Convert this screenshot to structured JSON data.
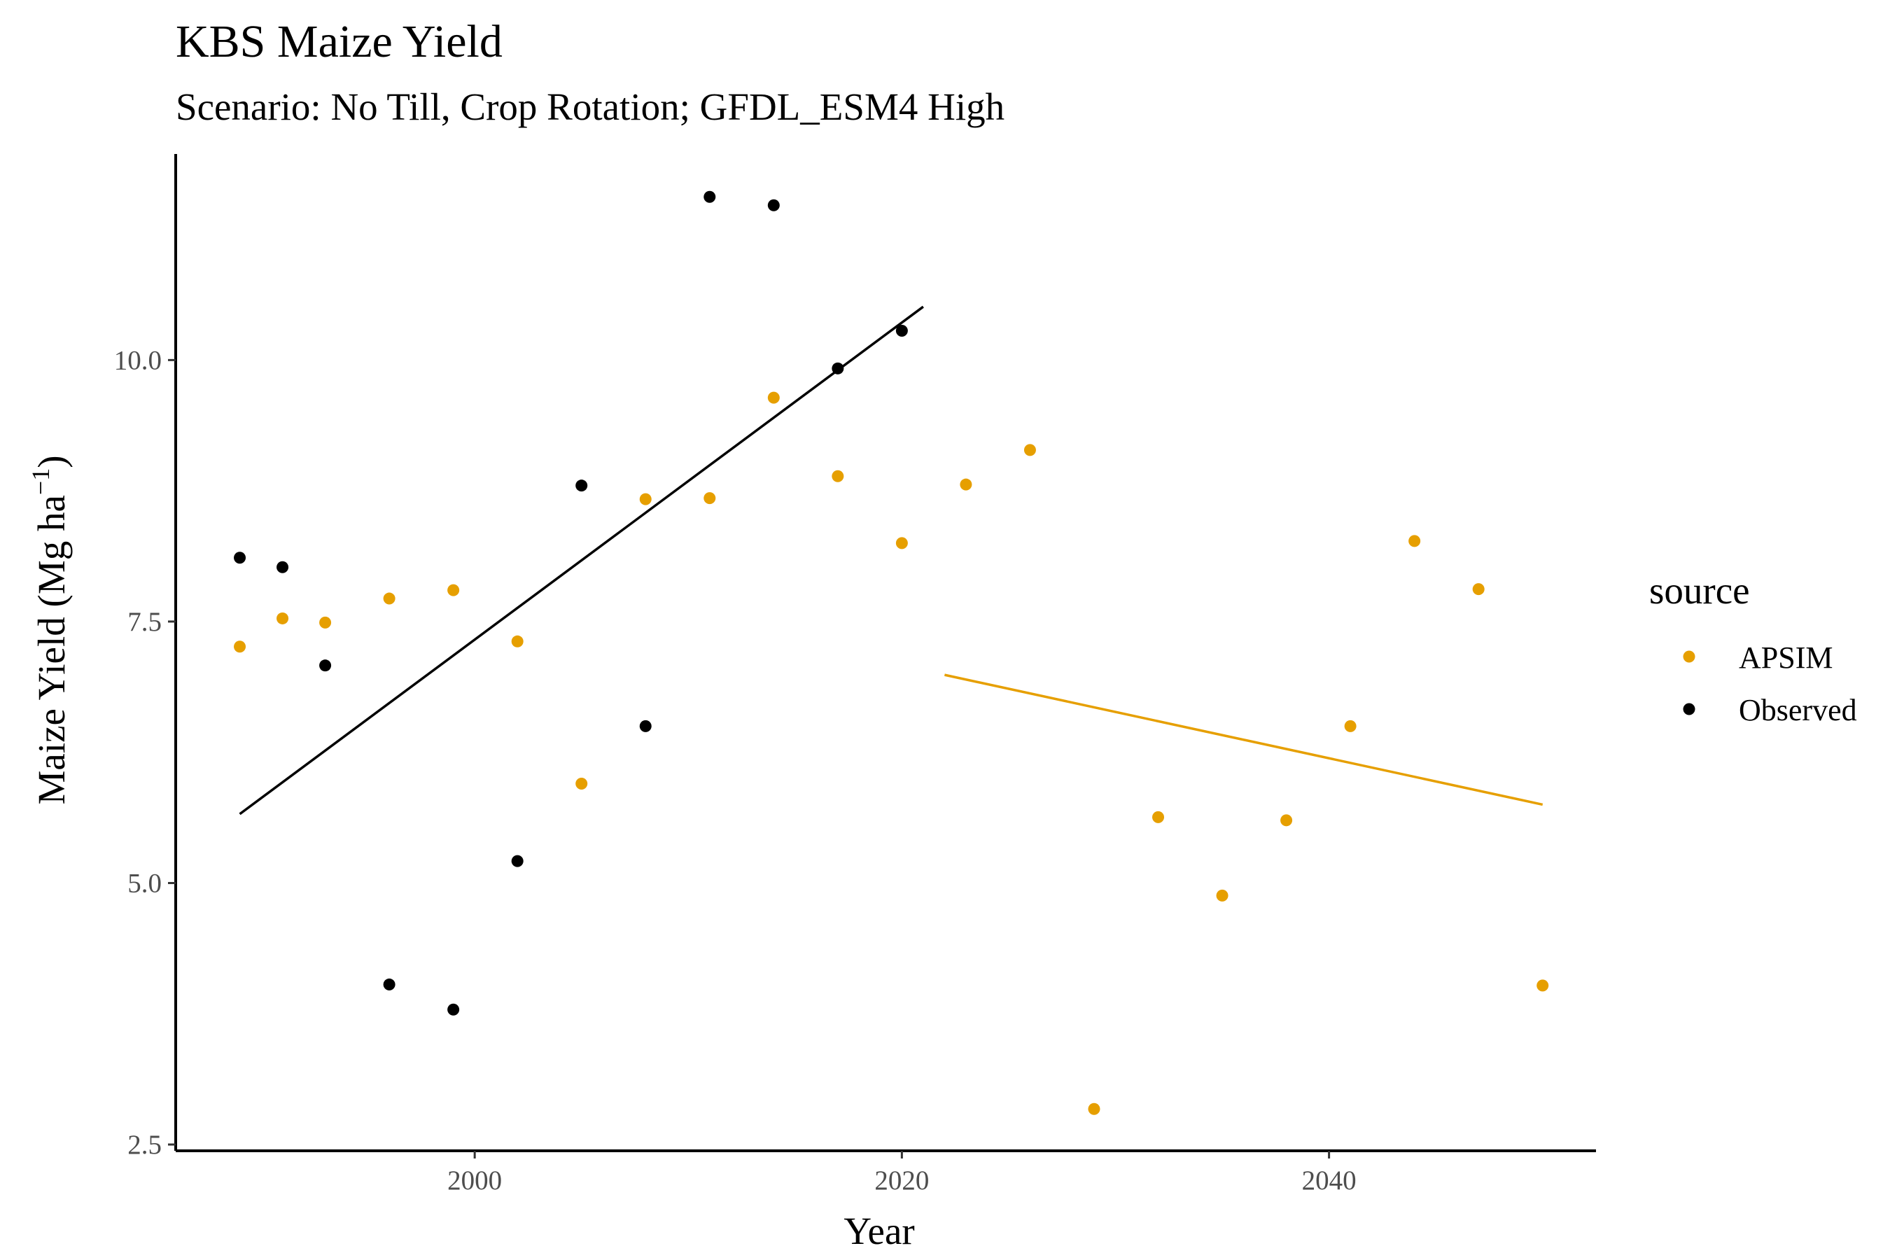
{
  "chart_data": {
    "type": "scatter",
    "title": "KBS Maize Yield",
    "subtitle": "Scenario: No Till, Crop Rotation; GFDL_ESM4 High",
    "xlabel": "Year",
    "ylabel_prefix": "Maize Yield (Mg ha",
    "ylabel_superscript": "−1",
    "ylabel_suffix": ")",
    "xlim": [
      1986,
      2052.5
    ],
    "ylim": [
      2.44,
      11.97
    ],
    "x_ticks": [
      2000,
      2020,
      2040
    ],
    "x_tick_labels": [
      "2000",
      "2020",
      "2040"
    ],
    "y_ticks": [
      2.5,
      5.0,
      7.5,
      10.0
    ],
    "y_tick_labels": [
      "2.5",
      "5.0",
      "7.5",
      "10.0"
    ],
    "grid": false,
    "legend": {
      "title": "source",
      "position": "right",
      "entries": [
        "APSIM",
        "Observed"
      ]
    },
    "series": [
      {
        "name": "APSIM",
        "color": "#E69F00",
        "points": [
          {
            "x": 1989,
            "y": 7.26
          },
          {
            "x": 1991,
            "y": 7.53
          },
          {
            "x": 1993,
            "y": 7.49
          },
          {
            "x": 1996,
            "y": 7.72
          },
          {
            "x": 1999,
            "y": 7.8
          },
          {
            "x": 2002,
            "y": 7.31
          },
          {
            "x": 2005,
            "y": 5.95
          },
          {
            "x": 2008,
            "y": 8.67
          },
          {
            "x": 2011,
            "y": 8.68
          },
          {
            "x": 2014,
            "y": 9.64
          },
          {
            "x": 2017,
            "y": 8.89
          },
          {
            "x": 2020,
            "y": 8.25
          },
          {
            "x": 2023,
            "y": 8.81
          },
          {
            "x": 2026,
            "y": 9.14
          },
          {
            "x": 2029,
            "y": 2.84
          },
          {
            "x": 2032,
            "y": 5.63
          },
          {
            "x": 2035,
            "y": 4.88
          },
          {
            "x": 2038,
            "y": 5.6
          },
          {
            "x": 2041,
            "y": 6.5
          },
          {
            "x": 2044,
            "y": 8.27
          },
          {
            "x": 2047,
            "y": 7.81
          },
          {
            "x": 2050,
            "y": 4.02
          }
        ],
        "trend": {
          "x": [
            2022,
            2050
          ],
          "y": [
            6.99,
            5.75
          ]
        }
      },
      {
        "name": "Observed",
        "color": "#000000",
        "points": [
          {
            "x": 1989,
            "y": 8.11
          },
          {
            "x": 1991,
            "y": 8.02
          },
          {
            "x": 1993,
            "y": 7.08
          },
          {
            "x": 1996,
            "y": 4.03
          },
          {
            "x": 1999,
            "y": 3.79
          },
          {
            "x": 2002,
            "y": 5.21
          },
          {
            "x": 2005,
            "y": 8.8
          },
          {
            "x": 2008,
            "y": 6.5
          },
          {
            "x": 2011,
            "y": 11.56
          },
          {
            "x": 2014,
            "y": 11.48
          },
          {
            "x": 2017,
            "y": 9.92
          },
          {
            "x": 2020,
            "y": 10.28
          }
        ],
        "trend": {
          "x": [
            1989,
            2021
          ],
          "y": [
            5.66,
            10.51
          ]
        }
      }
    ]
  }
}
